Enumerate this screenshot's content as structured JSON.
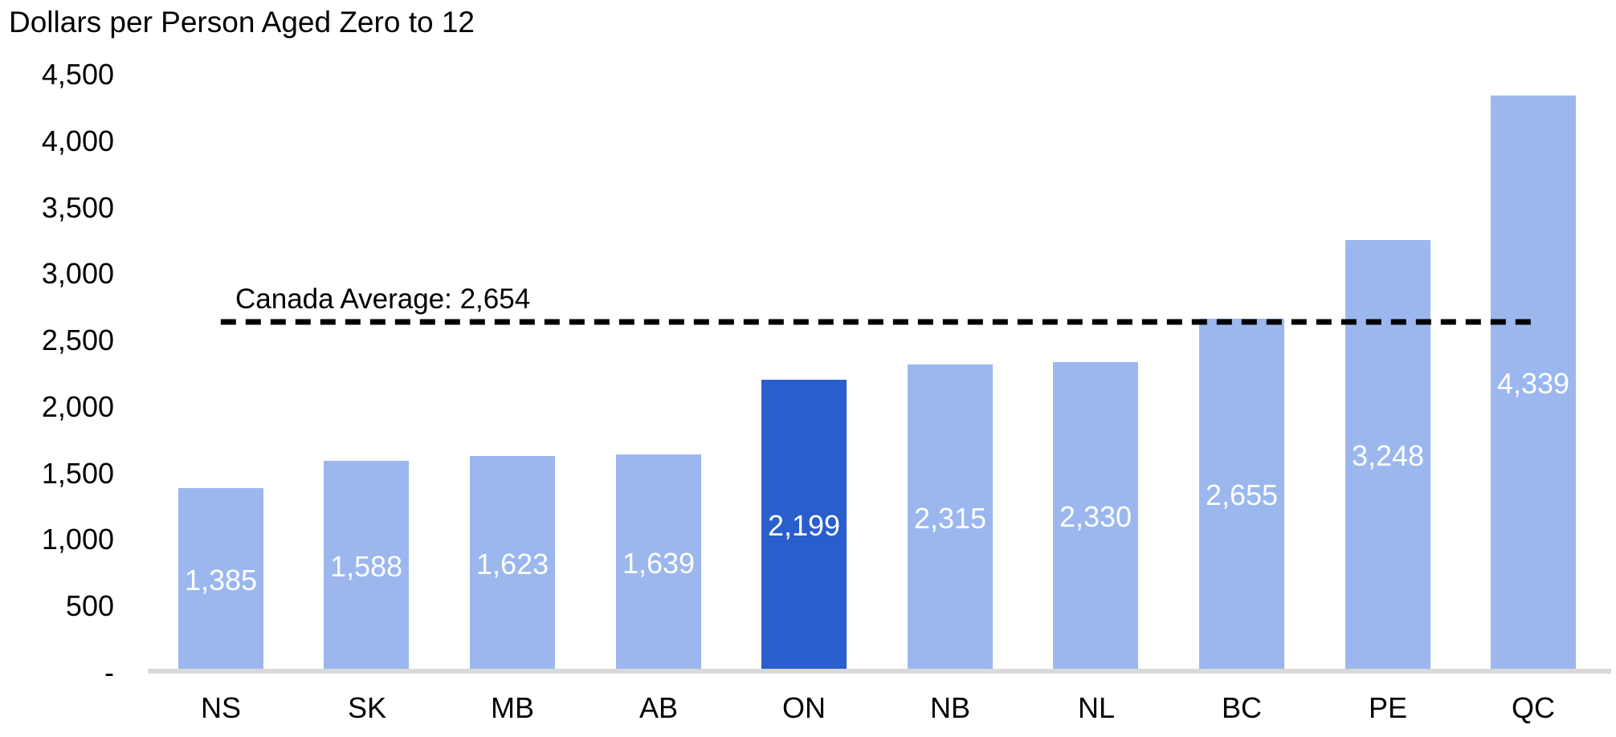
{
  "chart_data": {
    "type": "bar",
    "title": "Dollars per Person Aged Zero to 12",
    "categories": [
      "NS",
      "SK",
      "MB",
      "AB",
      "ON",
      "NB",
      "NL",
      "BC",
      "PE",
      "QC"
    ],
    "values": [
      1385,
      1588,
      1623,
      1639,
      2199,
      2315,
      2330,
      2655,
      3248,
      4339
    ],
    "value_labels": [
      "1,385",
      "1,588",
      "1,623",
      "1,639",
      "2,199",
      "2,315",
      "2,330",
      "2,655",
      "3,248",
      "4,339"
    ],
    "highlight_category": "ON",
    "ylabel": "",
    "xlabel": "",
    "ylim": [
      0,
      4500
    ],
    "ytick_interval": 500,
    "ytick_labels": [
      "-",
      "500",
      "1,000",
      "1,500",
      "2,000",
      "2,500",
      "3,000",
      "3,500",
      "4,000",
      "4,500"
    ],
    "grid": false,
    "legend": false,
    "reference_line": {
      "label": "Canada Average: 2,654",
      "value": 2654,
      "style": "dashed"
    },
    "colors": {
      "bar": "#9BB7EE",
      "highlight_bar": "#2A5ECC",
      "reference_line": "#000000",
      "axis_line": "#D9D9D9",
      "bar_label_text": "#FFFFFF",
      "text": "#000000"
    }
  }
}
